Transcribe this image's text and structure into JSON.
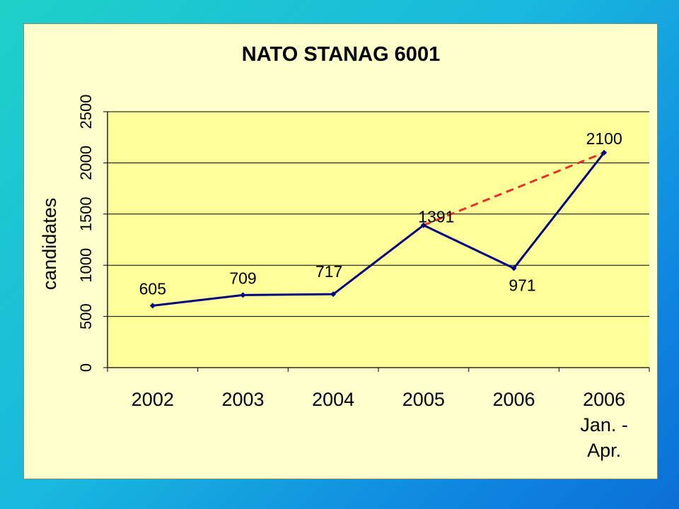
{
  "chart_data": {
    "type": "line",
    "title": "NATO STANAG 6001",
    "xlabel": "",
    "ylabel": "candidates",
    "ylim": [
      0,
      2500
    ],
    "yticks": [
      0,
      500,
      1000,
      1500,
      2000,
      2500
    ],
    "grid": true,
    "categories": [
      [
        "2002"
      ],
      [
        "2003"
      ],
      [
        "2004"
      ],
      [
        "2005"
      ],
      [
        "2006"
      ],
      [
        "2006",
        "Jan. -",
        "Apr."
      ]
    ],
    "series": [
      {
        "name": "",
        "values": [
          605,
          709,
          717,
          1391,
          971,
          2100
        ],
        "color": "#000080"
      }
    ],
    "data_labels": [
      "605",
      "709",
      "717",
      "1391",
      "971",
      "2100"
    ],
    "trend_line": {
      "from_index": 3,
      "to_index": 5,
      "style": "dashed",
      "color": "#e8302a"
    }
  },
  "colors": {
    "plot_background": "#ffff99",
    "frame_background": "#ffffcc",
    "line": "#000080",
    "trend": "#e8302a"
  }
}
